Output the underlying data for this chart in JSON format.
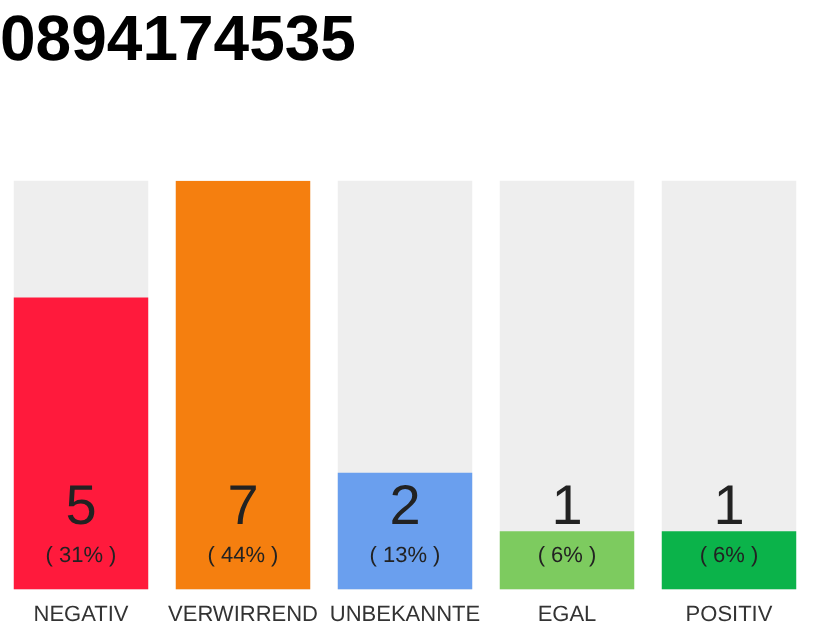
{
  "chart_data": {
    "type": "bar",
    "title": "0894174535",
    "categories": [
      "NEGATIV",
      "VERWIRREND",
      "UNBEKANNTE",
      "EGAL",
      "POSITIV"
    ],
    "values": [
      5,
      7,
      2,
      1,
      1
    ],
    "colors": [
      "#ff1a3c",
      "#f57f0f",
      "#6a9fee",
      "#7dcb5f",
      "#0bb34a"
    ],
    "data_labels": true,
    "annotations": [
      "( 31% )",
      "( 44% )",
      "( 13% )",
      "( 6% )",
      "( 6% )"
    ],
    "grid": false,
    "legend": false
  }
}
